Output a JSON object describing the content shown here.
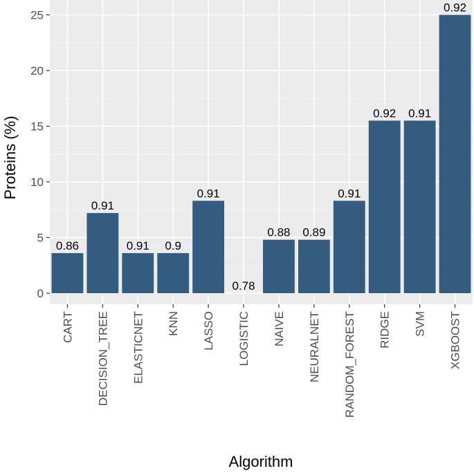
{
  "chart_data": {
    "type": "bar",
    "xlabel": "Algorithm",
    "ylabel": "Proteins (%)",
    "ylim": [
      0,
      26
    ],
    "yticks": [
      0,
      5,
      10,
      15,
      20,
      25
    ],
    "grid": true,
    "categories": [
      "CART",
      "DECISION_TREE",
      "ELASTICNET",
      "KNN",
      "LASSO",
      "LOGISTIC",
      "NAIVE",
      "NEURALNET",
      "RANDOM_FOREST",
      "RIDGE",
      "SVM",
      "XGBOOST"
    ],
    "values": [
      3.6,
      7.2,
      3.6,
      3.6,
      8.3,
      0,
      4.8,
      4.8,
      8.3,
      15.5,
      15.5,
      25.0
    ],
    "data_labels": [
      "0.86",
      "0.91",
      "0.91",
      "0.9",
      "0.91",
      "0.78",
      "0.88",
      "0.89",
      "0.91",
      "0.92",
      "0.91",
      "0.92"
    ],
    "colors": {
      "bar": "#335c81",
      "panel": "#ebebeb",
      "grid_major": "#ffffff",
      "grid_minor": "#f4f4f4"
    }
  }
}
